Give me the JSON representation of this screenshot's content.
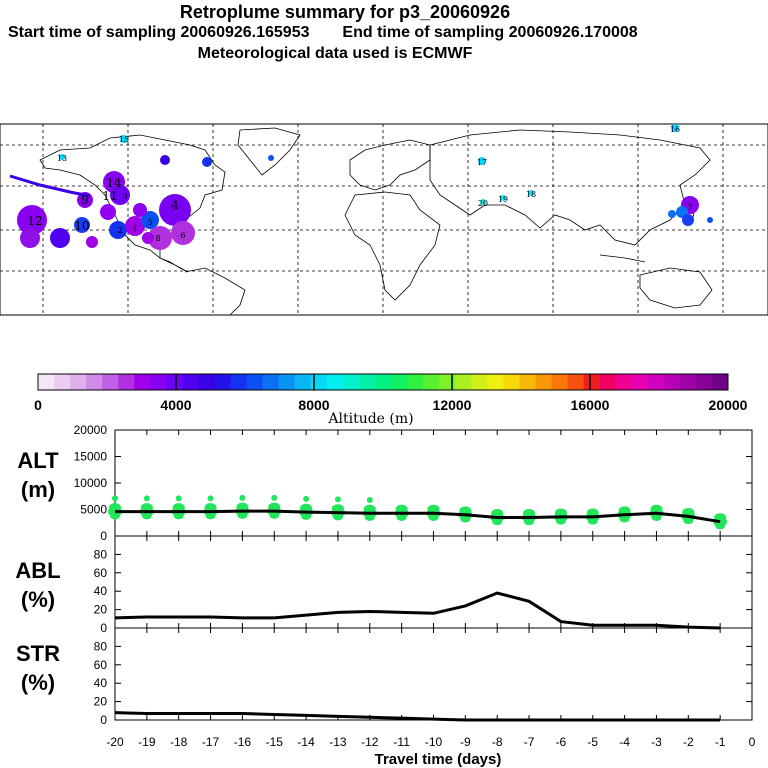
{
  "header": {
    "title": "Retroplume summary for p3_20060926",
    "start_label": "Start time of sampling 20060926.165953",
    "end_label": "End time of sampling 20060926.170008",
    "met_label": "Meteorological data used is ECMWF"
  },
  "colorbar": {
    "min": 0,
    "max": 20000,
    "tick_labels": [
      "0",
      "4000",
      "8000",
      "12000",
      "16000",
      "20000"
    ],
    "axis_label": "Altitude (m)",
    "colors": [
      "#f5e6f7",
      "#eccdf2",
      "#e0b0ee",
      "#d08ae8",
      "#c060e4",
      "#b030e0",
      "#a000e8",
      "#8800f0",
      "#6e00f5",
      "#5000f0",
      "#3a00e6",
      "#2410e8",
      "#1432f0",
      "#0a50f2",
      "#0a72f2",
      "#0a94f2",
      "#08b6f4",
      "#06d8f6",
      "#04f0f0",
      "#04f0cc",
      "#04f0a8",
      "#04f084",
      "#10f060",
      "#30f040",
      "#58f030",
      "#80f028",
      "#a8f020",
      "#d0f018",
      "#f0f010",
      "#f8d808",
      "#f8b808",
      "#f89808",
      "#f87808",
      "#f85010",
      "#f02020",
      "#f00060",
      "#f00090",
      "#e800b0",
      "#d000c0",
      "#b800b8",
      "#a000a8",
      "#880098",
      "#700088"
    ]
  },
  "map": {
    "labels": [
      {
        "t": "15"
      },
      {
        "t": "16"
      },
      {
        "t": "13"
      },
      {
        "t": "17"
      },
      {
        "t": "18"
      },
      {
        "t": "19"
      },
      {
        "t": "20"
      },
      {
        "t": "14"
      },
      {
        "t": "9"
      },
      {
        "t": "11"
      },
      {
        "t": "10"
      },
      {
        "t": "12"
      },
      {
        "t": "4"
      },
      {
        "t": "5"
      },
      {
        "t": "3"
      },
      {
        "t": "2"
      },
      {
        "t": "1"
      },
      {
        "t": "6"
      },
      {
        "t": "8"
      },
      {
        "t": "7"
      }
    ]
  },
  "chart_data": {
    "type": "line",
    "x": [
      -20,
      -19,
      -18,
      -17,
      -16,
      -15,
      -14,
      -13,
      -12,
      -11,
      -10,
      -9,
      -8,
      -7,
      -6,
      -5,
      -4,
      -3,
      -2,
      -1
    ],
    "xlabel": "Travel time (days)",
    "x_ticks": [
      "-20",
      "-19",
      "-18",
      "-17",
      "-16",
      "-15",
      "-14",
      "-13",
      "-12",
      "-11",
      "-10",
      "-9",
      "-8",
      "-7",
      "-6",
      "-5",
      "-4",
      "-3",
      "-2",
      "-1",
      "0"
    ],
    "panels": [
      {
        "name": "ALT",
        "ylabel": "ALT",
        "yunit": "(m)",
        "ylim": [
          0,
          20000
        ],
        "yticks": [
          "0",
          "5000",
          "10000",
          "15000",
          "20000"
        ],
        "yvals": [
          0,
          5000,
          10000,
          15000,
          20000
        ],
        "values": [
          4600,
          4600,
          4600,
          4600,
          4700,
          4700,
          4500,
          4400,
          4300,
          4300,
          4300,
          4000,
          3500,
          3500,
          3600,
          3600,
          4000,
          4300,
          3700,
          2700
        ]
      },
      {
        "name": "ABL",
        "ylabel": "ABL",
        "yunit": "(%)",
        "ylim": [
          0,
          100
        ],
        "yticks": [
          "0",
          "20",
          "40",
          "60",
          "80"
        ],
        "yvals": [
          0,
          20,
          40,
          60,
          80
        ],
        "values": [
          11,
          12,
          12,
          12,
          11,
          11,
          14,
          17,
          18,
          17,
          16,
          24,
          38,
          29,
          7,
          3,
          3,
          3,
          1,
          0
        ]
      },
      {
        "name": "STR",
        "ylabel": "STR",
        "yunit": "(%)",
        "ylim": [
          0,
          100
        ],
        "yticks": [
          "0",
          "20",
          "40",
          "60",
          "80"
        ],
        "yvals": [
          0,
          20,
          40,
          60,
          80
        ],
        "values": [
          8,
          7,
          7,
          7,
          7,
          6,
          5,
          4,
          3,
          2,
          1,
          0,
          0,
          0,
          0,
          0,
          0,
          0,
          0,
          0
        ]
      }
    ]
  }
}
